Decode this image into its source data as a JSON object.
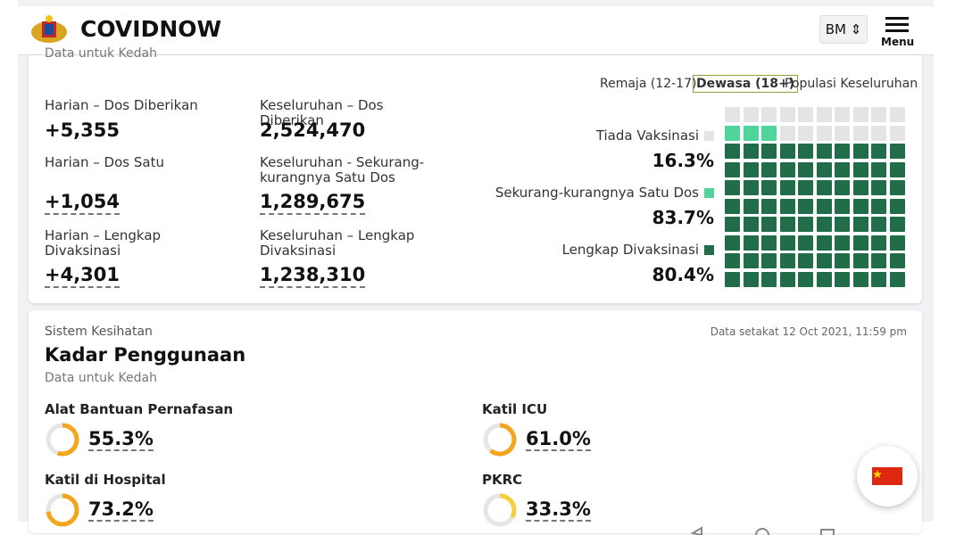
{
  "header": {
    "title": "COVIDNOW",
    "language": "BM",
    "menu": "Menu"
  },
  "vaccination": {
    "subtitle": "Data untuk Kedah",
    "tabs": [
      "Remaja (12-17)",
      "Dewasa (18+)",
      "Populasi Keseluruhan"
    ],
    "stats": [
      {
        "label": "Harian – Dos Diberikan",
        "value": "+5,355"
      },
      {
        "label": "Keseluruhan – Dos Diberikan",
        "value": "2,524,470"
      },
      {
        "label": "Harian – Dos Satu",
        "value": "+1,054"
      },
      {
        "label": "Keseluruhan - Sekurang-kurangnya Satu Dos",
        "value": "1,289,675"
      },
      {
        "label": "Harian – Lengkap Divaksinasi",
        "value": "+4,301"
      },
      {
        "label": "Keseluruhan – Lengkap Divaksinasi",
        "value": "1,238,310"
      }
    ],
    "waffle": [
      {
        "label": "Tiada Vaksinasi",
        "value": 16.3,
        "value_label": "16.3%",
        "color": "#e4e4e4"
      },
      {
        "label": "Sekurang-kurangnya Satu Dos",
        "value": 83.7,
        "value_label": "83.7%",
        "color": "#4fd49b"
      },
      {
        "label": "Lengkap Divaksinasi",
        "value": 80.4,
        "value_label": "80.4%",
        "color": "#216d4a"
      }
    ]
  },
  "health": {
    "section": "Sistem Kesihatan",
    "title": "Kadar Penggunaan",
    "subtitle": "Data untuk Kedah",
    "updated": "Data setakat 12 Oct 2021, 11:59 pm",
    "gauges": [
      {
        "label": "Alat Bantuan Pernafasan",
        "value": 55.3,
        "value_label": "55.3%",
        "color": "#f3a51d"
      },
      {
        "label": "Katil ICU",
        "value": 61.0,
        "value_label": "61.0%",
        "color": "#f3a51d"
      },
      {
        "label": "Katil di Hospital",
        "value": 73.2,
        "value_label": "73.2%",
        "color": "#f3a51d"
      },
      {
        "label": "PKRC",
        "value": 33.3,
        "value_label": "33.3%",
        "color": "#f6cf3c"
      }
    ]
  }
}
